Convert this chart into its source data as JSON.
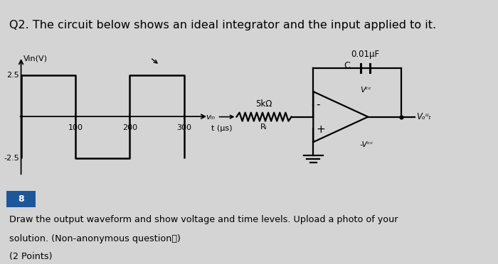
{
  "title": "Q2. The circuit below shows an ideal integrator and the input applied to it.",
  "title_fontsize": 11.5,
  "bg_title": "#c8d4e8",
  "bg_mid": "#dcdcdc",
  "bg_bottom": "#d4d4d4",
  "question_number": "8",
  "question_number_bg": "#1e5799",
  "body_text_line1": "Draw the output waveform and show voltage and time levels. Upload a photo of your",
  "body_text_line2": "solution.",
  "small_text": "(Non-anonymous questionⓘ)",
  "points_text": "(2 Points)",
  "vin_label": "Vin(V)",
  "t_label": "t (μs)",
  "v25": 2.5,
  "vm25": -2.5,
  "t_ticks": [
    100,
    200,
    300
  ],
  "cap_label": "0.01μF",
  "c_label": "C",
  "r_label": "5kΩ",
  "ri_label": "Rᵢ",
  "vin_conn": "vᵢₙ",
  "vcc_label": "Vᶜᶜ",
  "mvcc_label": "-Vᶜᶜ",
  "vout_label": "Vₒᵘₜ",
  "waveform_color": "#000000",
  "circuit_color": "#000000"
}
